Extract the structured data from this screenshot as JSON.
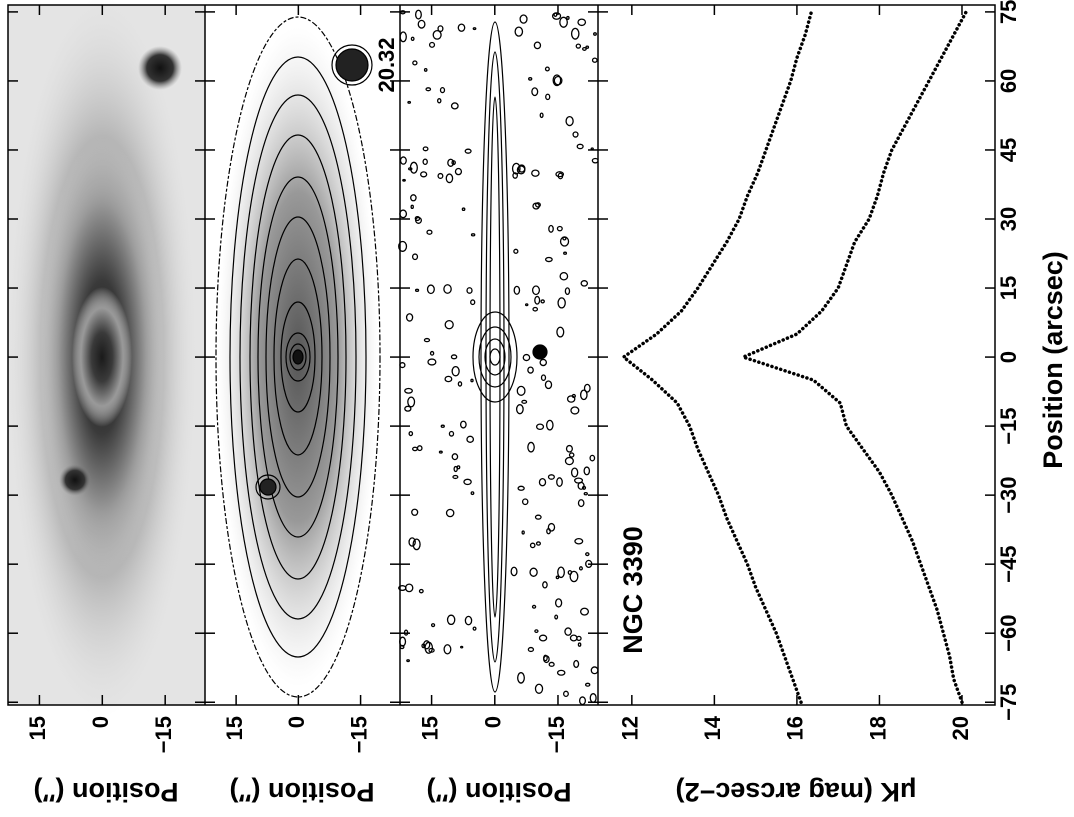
{
  "chart_data": [
    {
      "type": "image",
      "ylabel": "Position (″)",
      "xlim": [
        -75.6,
        76.5
      ],
      "ylim": [
        -24.5,
        22.5
      ],
      "xticks": [
        {
          "value": -75,
          "label": "−75"
        },
        {
          "value": -60,
          "label": "−60"
        },
        {
          "value": -45,
          "label": "−45"
        },
        {
          "value": -30,
          "label": "−30"
        },
        {
          "value": -15,
          "label": "−15"
        },
        0,
        15,
        30,
        45,
        60,
        75
      ],
      "yticks": [
        15,
        0,
        {
          "value": -15,
          "label": "−15"
        }
      ]
    },
    {
      "type": "contour",
      "ylabel": "Position (″)",
      "annotation": "20.32",
      "xlim": [
        -75.6,
        76.5
      ],
      "ylim": [
        -24.5,
        22.5
      ],
      "xticks": [
        {
          "value": -75,
          "label": "−75"
        },
        {
          "value": -60,
          "label": "−60"
        },
        {
          "value": -45,
          "label": "−45"
        },
        {
          "value": -30,
          "label": "−30"
        },
        {
          "value": -15,
          "label": "−15"
        },
        0,
        15,
        30,
        45,
        60,
        75
      ],
      "yticks": [
        15,
        0,
        {
          "value": -15,
          "label": "−15"
        }
      ]
    },
    {
      "type": "residual",
      "ylabel": "Position (″)",
      "xlim": [
        -75.6,
        76.5
      ],
      "ylim": [
        -24.5,
        22.5
      ],
      "xticks": [
        {
          "value": -75,
          "label": "−75"
        },
        {
          "value": -60,
          "label": "−60"
        },
        {
          "value": -45,
          "label": "−45"
        },
        {
          "value": -30,
          "label": "−30"
        },
        {
          "value": -15,
          "label": "−15"
        },
        0,
        15,
        30,
        45,
        60,
        75
      ],
      "yticks": [
        15,
        0,
        {
          "value": -15,
          "label": "−15"
        }
      ]
    },
    {
      "type": "line",
      "annotation": "NGC 3390",
      "xlabel": "Position (arcsec)",
      "ylabel": "μK (mag arcsec−2)",
      "xlim": [
        -75.6,
        76.5
      ],
      "ylim": [
        20.8,
        11.18
      ],
      "xticks": [
        {
          "value": -75,
          "label": "−75"
        },
        {
          "value": -60,
          "label": "−60"
        },
        {
          "value": -45,
          "label": "−45"
        },
        {
          "value": -30,
          "label": "−30"
        },
        {
          "value": -15,
          "label": "−15"
        },
        0,
        15,
        30,
        45,
        60,
        75
      ],
      "yticks": [
        12,
        14,
        16,
        18,
        20
      ],
      "x": [
        -75,
        -70,
        -65,
        -60,
        -55,
        -50,
        -45,
        -40,
        -35,
        -30,
        -25,
        -20,
        -15,
        -10,
        -5,
        0,
        5,
        10,
        15,
        20,
        25,
        30,
        35,
        40,
        45,
        50,
        55,
        60,
        65,
        70,
        75
      ],
      "series": [
        {
          "color": "#000000",
          "values": [
            16.1,
            15.9,
            15.7,
            15.5,
            15.25,
            15.0,
            14.8,
            14.55,
            14.3,
            14.1,
            13.85,
            13.6,
            13.4,
            13.1,
            12.5,
            11.8,
            12.6,
            13.2,
            13.6,
            13.95,
            14.3,
            14.6,
            14.8,
            15.05,
            15.25,
            15.45,
            15.65,
            15.85,
            16.0,
            16.2,
            16.35
          ]
        },
        {
          "color": "#000000",
          "values": [
            20.0,
            19.8,
            19.7,
            19.55,
            19.4,
            19.2,
            19.0,
            18.8,
            18.55,
            18.3,
            18.0,
            17.6,
            17.2,
            17.05,
            16.4,
            14.7,
            16.0,
            16.6,
            17.0,
            17.2,
            17.4,
            17.75,
            17.95,
            18.1,
            18.3,
            18.6,
            18.9,
            19.2,
            19.5,
            19.8,
            20.1
          ]
        }
      ]
    }
  ]
}
